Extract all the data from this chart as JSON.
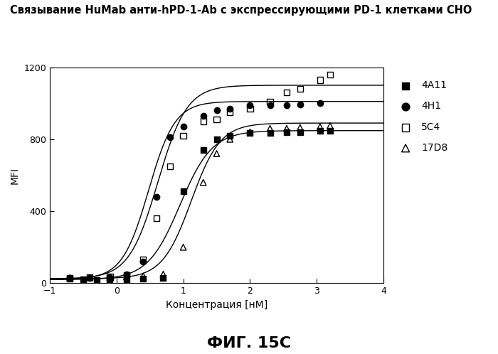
{
  "title": "Связывание HuMab анти-hPD-1-Ab с экспрессирующими PD-1 клетками СНО",
  "xlabel": "Концентрация [нМ]",
  "ylabel": "MFI",
  "caption": "ФИГ. 15С",
  "xlim": [
    -1,
    4
  ],
  "ylim": [
    0,
    1200
  ],
  "xticks": [
    -1,
    0,
    1,
    2,
    3,
    4
  ],
  "yticks": [
    0,
    400,
    800,
    1200
  ],
  "legend_labels": [
    "4A11",
    "4H1",
    "5C4",
    "17D8"
  ],
  "series": {
    "4A11": {
      "scatter_x": [
        -0.7,
        -0.5,
        -0.3,
        -0.1,
        0.15,
        0.4,
        0.7,
        1.0,
        1.3,
        1.5,
        1.7,
        2.0,
        2.3,
        2.55,
        2.75,
        3.05,
        3.2
      ],
      "scatter_y": [
        25,
        22,
        18,
        20,
        22,
        25,
        30,
        510,
        740,
        800,
        820,
        835,
        835,
        840,
        840,
        845,
        845
      ],
      "ec50": 0.95,
      "top": 848,
      "bottom": 20,
      "hillslope": 1.8,
      "marker": "s",
      "color": "black",
      "filled": true
    },
    "4H1": {
      "scatter_x": [
        -0.7,
        -0.4,
        -0.1,
        0.15,
        0.4,
        0.6,
        0.8,
        1.0,
        1.3,
        1.5,
        1.7,
        2.0,
        2.3,
        2.55,
        2.75,
        3.05
      ],
      "scatter_y": [
        28,
        30,
        35,
        50,
        120,
        480,
        810,
        870,
        930,
        960,
        970,
        990,
        990,
        990,
        995,
        1000
      ],
      "ec50": 0.48,
      "top": 1010,
      "bottom": 22,
      "hillslope": 2.2,
      "marker": "o",
      "color": "black",
      "filled": true
    },
    "5C4": {
      "scatter_x": [
        -0.7,
        -0.4,
        -0.1,
        0.15,
        0.4,
        0.6,
        0.8,
        1.0,
        1.3,
        1.5,
        1.7,
        2.0,
        2.3,
        2.55,
        2.75,
        3.05,
        3.2
      ],
      "scatter_y": [
        30,
        32,
        35,
        45,
        130,
        360,
        650,
        820,
        900,
        910,
        950,
        970,
        1010,
        1060,
        1080,
        1130,
        1160
      ],
      "ec50": 0.62,
      "top": 1100,
      "bottom": 25,
      "hillslope": 2.0,
      "marker": "s",
      "color": "black",
      "filled": false
    },
    "17D8": {
      "scatter_x": [
        -0.7,
        -0.4,
        -0.1,
        0.15,
        0.4,
        0.7,
        1.0,
        1.3,
        1.5,
        1.7,
        2.0,
        2.3,
        2.55,
        2.75,
        3.05,
        3.2
      ],
      "scatter_y": [
        30,
        30,
        32,
        35,
        40,
        50,
        200,
        560,
        720,
        800,
        840,
        860,
        860,
        865,
        870,
        875
      ],
      "ec50": 1.12,
      "top": 890,
      "bottom": 25,
      "hillslope": 2.0,
      "marker": "^",
      "color": "black",
      "filled": false
    }
  },
  "bg_color": "#ffffff",
  "line_color": "#000000",
  "title_fontsize": 10.5,
  "axis_fontsize": 10,
  "caption_fontsize": 16,
  "legend_fontsize": 10,
  "marker_size": 6
}
